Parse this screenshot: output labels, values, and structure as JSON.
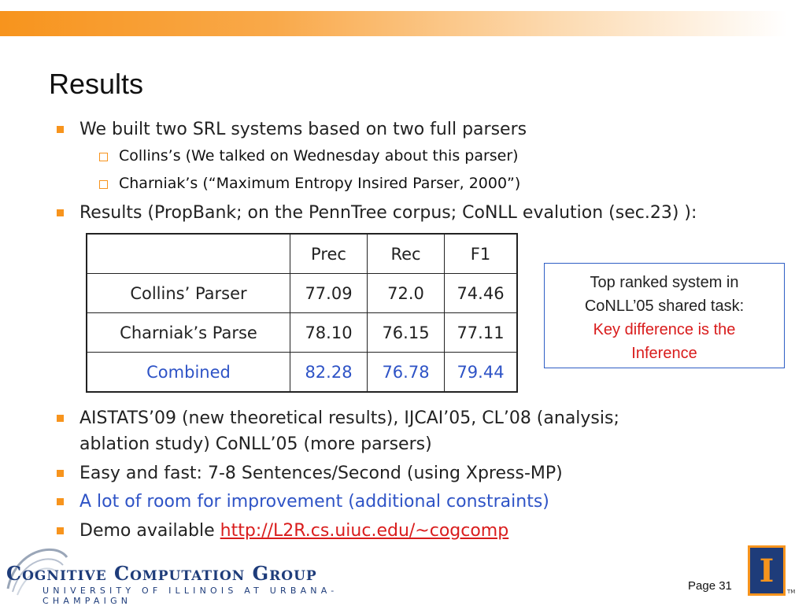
{
  "title": "Results",
  "bullets": {
    "b1": "We built two SRL systems based on two full parsers",
    "sub1": "Collins’s   (We talked on Wednesday about this parser)",
    "sub2": "Charniak’s   (“Maximum Entropy Insired Parser,  2000”)",
    "b2": "Results (PropBank; on the PennTree corpus; CoNLL evalution (sec.23) ):",
    "b3_line1": "AISTATS’09 (new theoretical results), IJCAI’05, CL’08 (analysis;",
    "b3_line2": "ablation study)   CoNLL’05 (more parsers)",
    "b4": "Easy and fast: 7-8 Sentences/Second       (using Xpress-MP)",
    "b5": "A lot of room for improvement (additional constraints)",
    "b6_prefix": "Demo available ",
    "b6_link": "http://L2R.cs.uiuc.edu/~cogcomp"
  },
  "table": {
    "headers": [
      "",
      "Prec",
      "Rec",
      "F1"
    ],
    "rows": [
      [
        "Collins’ Parser",
        "77.09",
        "72.0",
        "74.46"
      ],
      [
        "Charniak’s Parse",
        "78.10",
        "76.15",
        "77.11"
      ],
      [
        "Combined",
        "82.28",
        "76.78",
        "79.44"
      ]
    ]
  },
  "callout": {
    "line1": "Top ranked system in",
    "line2": "CoNLL’05 shared task:",
    "line3": "Key difference is the",
    "line4": "Inference"
  },
  "footer": {
    "logo_main": "Cognitive Computation Group",
    "logo_sub": "UNIVERSITY OF ILLINOIS AT URBANA-CHAMPAIGN",
    "page": "Page 31",
    "illinois_mark": "I",
    "tm": "TM"
  },
  "colors": {
    "accent": "#f7941d",
    "blue_text": "#2e53c6",
    "red_text": "#d91c1c",
    "logo_navy": "#1e3c7a"
  }
}
